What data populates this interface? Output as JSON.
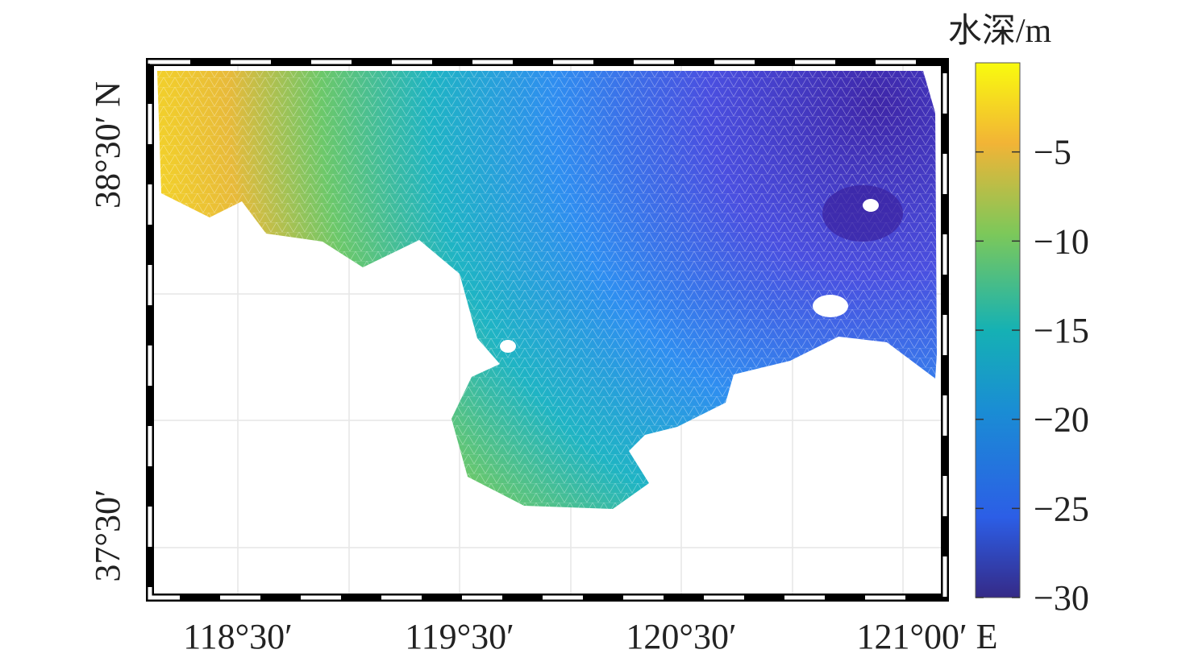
{
  "colorbar": {
    "title": "水深/m",
    "lim": [
      -30,
      0
    ],
    "ticks": [
      {
        "value": -5,
        "label": "−5"
      },
      {
        "value": -10,
        "label": "−10"
      },
      {
        "value": -15,
        "label": "−15"
      },
      {
        "value": -20,
        "label": "−20"
      },
      {
        "value": -25,
        "label": "−25"
      },
      {
        "value": -30,
        "label": "−30"
      }
    ]
  },
  "map": {
    "lat_labels": [
      "38°30′ N",
      "37°30′"
    ],
    "lon_labels": [
      "118°30′",
      "119°30′",
      "120°30′",
      "121°00′ E"
    ]
  }
}
